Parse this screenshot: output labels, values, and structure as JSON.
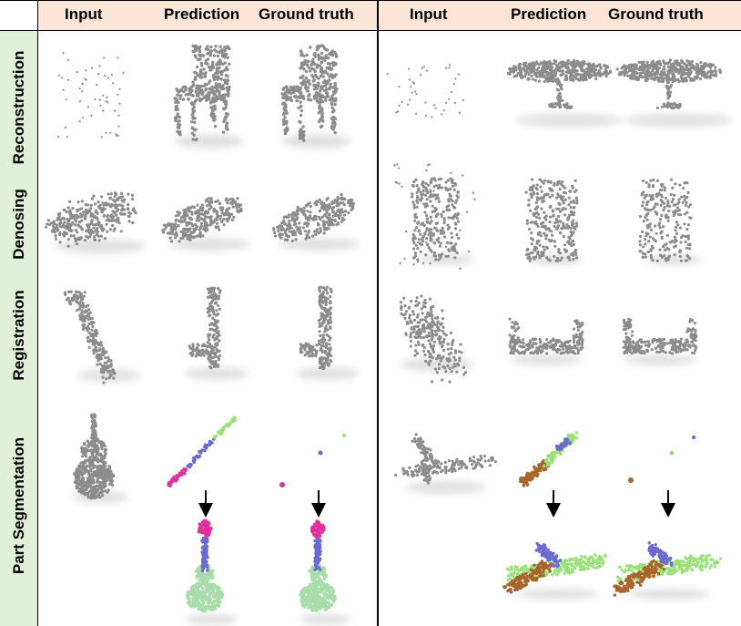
{
  "header": {
    "left": {
      "input": "Input",
      "prediction": "Prediction",
      "ground_truth": "Ground truth"
    },
    "right": {
      "input": "Input",
      "prediction": "Prediction",
      "ground_truth": "Ground truth"
    }
  },
  "rows": {
    "reconstruction": "Reconstruction",
    "denoising": "Denosing",
    "registration": "Registration",
    "part_segmentation": "Part Segmentation"
  },
  "colors": {
    "header_bg": "#fbe5d6",
    "sidebar_bg": "#e2efd9",
    "points": "#8c8c8c",
    "seg_magenta": "#e0309a",
    "seg_blue": "#6a6ad0",
    "seg_green": "#9be07a",
    "seg_light_green": "#a8dcaa",
    "seg_brown": "#a8642a"
  },
  "icons": [
    "down-arrow-icon"
  ]
}
